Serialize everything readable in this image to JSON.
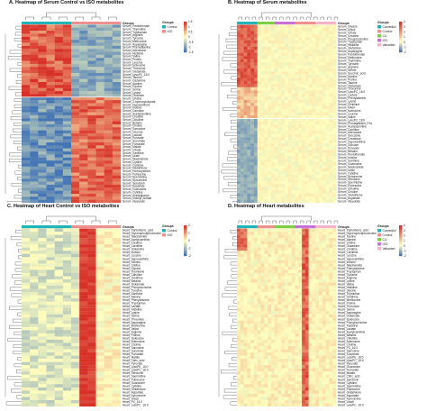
{
  "panels": [
    {
      "id": "A",
      "title": "A. Heatmap of Serum Control vs ISO metabolites",
      "group_colors": [
        "#1fb5b8",
        "#1fb5b8",
        "#1fb5b8",
        "#1fb5b8",
        "#1fb5b8",
        "#1fb5b8",
        "#f08f8f",
        "#f08f8f",
        "#f08f8f",
        "#f08f8f",
        "#f08f8f",
        "#f08f8f"
      ],
      "legend_title": "Groups",
      "legend": [
        {
          "label": "Control",
          "color": "#1fb5b8"
        },
        {
          "label": "ISO",
          "color": "#f08f8f"
        }
      ],
      "scale_ticks": [
        "1.5",
        "1",
        "0.5",
        "0",
        "-0.5",
        "-1",
        "-1.5"
      ],
      "split_row": 24,
      "rows": [
        "Groups",
        "Serum_Pantothenate",
        "Serum_Thymidine",
        "Serum_Tryptophan",
        "Serum_Arginine",
        "Serum_Tyrosine",
        "Serum_Methionine",
        "Serum_Asparagine",
        "Serum_Phenylalanine",
        "Serum_Adenosine",
        "Serum_Histidine",
        "Serum_Valine",
        "Serum_Proline",
        "Serum_Leucine",
        "Serum_Isoleucine",
        "Serum_Threonine",
        "Serum_Glutamate",
        "Serum_LysoPC_16:0",
        "Serum_Taurine",
        "Serum_Glutamine",
        "Serum_Alanine",
        "Serum_Glycine",
        "Serum_Serine",
        "Serum_Lysine",
        "Serum_Ornithine",
        "Serum_Uridine",
        "Serum_3-hydroxybutyrate",
        "Serum_Hypoxanthine",
        "Serum_Inosine",
        "Serum_Carnitine",
        "Serum_Acetylcarnitine",
        "Serum_Creatine",
        "Serum_Citrulline",
        "Serum_Betaine",
        "Serum_Choline",
        "Serum_Sarcosine",
        "Serum_Glucose",
        "Serum_Lactate",
        "Serum_Pyruvate",
        "Serum_Succinate",
        "Serum_Fumarate",
        "Serum_Malate",
        "Serum_Citrate",
        "Serum_Xanthine",
        "Serum_Urate",
        "Serum_Niacinamide",
        "Serum_Cystine",
        "Serum_Cysteine",
        "Serum_Glutathione",
        "Serum_Homocysteine",
        "Serum_Putrescine",
        "Serum_Spermidine",
        "Serum_Kynurenine",
        "Serum_Serotonin",
        "Serum_Aspartate",
        "Serum_Guanosine",
        "Serum_Cytidine",
        "Serum_Acetylglycine",
        "Serum_Indoxyl_sulfate",
        "Serum_Hippurate"
      ],
      "vmin": -1.5,
      "vmax": 1.5,
      "matrix_seed": 11
    },
    {
      "id": "B",
      "title": "B. Heatmap of Serum metabolites",
      "group_colors": [
        "#1fb5b8",
        "#1fb5b8",
        "#1fb5b8",
        "#1fb5b8",
        "#1fb5b8",
        "#1fb5b8",
        "#7ccf45",
        "#7ccf45",
        "#7ccf45",
        "#7ccf45",
        "#7ccf45",
        "#c66fd8",
        "#c66fd8",
        "#c66fd8",
        "#c66fd8",
        "#c66fd8",
        "#c66fd8",
        "#f08f8f",
        "#f08f8f",
        "#f08f8f",
        "#f08f8f",
        "#f08f8f",
        "#f08f8f",
        "#f6b3c8",
        "#f6b3c8",
        "#f6b3c8",
        "#f6b3c8",
        "#f6b3c8",
        "#f6b3c8"
      ],
      "legend_title": "Groups",
      "legend": [
        {
          "label": "Carvedilol",
          "color": "#1fb5b8"
        },
        {
          "label": "Control",
          "color": "#f08f8f"
        },
        {
          "label": "CU",
          "color": "#7ccf45"
        },
        {
          "label": "ISO",
          "color": "#c66fd8"
        },
        {
          "label": "Valsartan",
          "color": "#f6b3c8"
        }
      ],
      "scale_ticks": [
        "4",
        "3",
        "2",
        "1",
        "0",
        "-1",
        "-2"
      ],
      "split_row": 30,
      "rows": [
        "Groups",
        "Serum_Glycine",
        "Serum_Uracil",
        "Serum_Citrate",
        "Serum_Creatine",
        "Serum_Phosphocholine",
        "Serum_Tryptophan",
        "Serum_Histidine",
        "Serum_Glutamine",
        "Serum_Asparagine",
        "Serum_Pantothenate",
        "Serum_Methionine",
        "Serum_Thymidine",
        "Serum_Tyrosine",
        "Serum_Arginine",
        "Serum_Serine",
        "Serum_Succinic_acid",
        "Serum_Alanine",
        "Serum_Proline",
        "Serum_Taurine",
        "Serum_Glutamate",
        "Serum_Threonine",
        "Serum_LysoPC_16:0",
        "Serum_Lactate",
        "Serum_Phenylalanine",
        "Serum_Lysine",
        "Serum_Ornithine",
        "Serum_NAD+",
        "Serum_Isoleucine",
        "Serum_Leucine",
        "Serum_Valine",
        "Serum_LysoPC_18:0",
        "Serum_Prostaglandin_F2a",
        "Serum_Acetylcarnitine",
        "Serum_Carnitine",
        "Serum_Adenosine",
        "Serum_Sarcosine",
        "Serum_Creatinine",
        "Serum_Hypoxanthine",
        "Serum_Glucose",
        "Serum_Pyruvate",
        "Serum_Betaine",
        "Serum_Pentothenate",
        "Serum_Inosine",
        "Serum_Xanthine",
        "Serum_Guanosine",
        "Serum_Niacinamide",
        "Serum_Urate",
        "Serum_Cytidine",
        "Serum_Kynurenine",
        "Serum_Serotonin",
        "Serum_Spermidine",
        "Serum_Putrescine",
        "Serum_Citrulline",
        "Serum_Choline",
        "Serum_Glutathione",
        "Serum_Aspartate",
        "Serum_Hippurate"
      ],
      "vmin": -2,
      "vmax": 4,
      "matrix_seed": 23
    },
    {
      "id": "C",
      "title": "C. Heatmap of Heart Control vs ISO metabolites",
      "group_colors": [
        "#1fb5b8",
        "#1fb5b8",
        "#1fb5b8",
        "#1fb5b8",
        "#1fb5b8",
        "#1fb5b8",
        "#f08f8f",
        "#f08f8f",
        "#f08f8f",
        "#f08f8f",
        "#f08f8f",
        "#f08f8f"
      ],
      "legend_title": "Groups",
      "legend": [
        {
          "label": "Control",
          "color": "#1fb5b8"
        },
        {
          "label": "ISO",
          "color": "#f08f8f"
        }
      ],
      "scale_ticks": [
        "2",
        "1",
        "0",
        "-1",
        "-2"
      ],
      "split_row": 0,
      "rows": [
        "Groups",
        "Heart_Pantothenic_acid",
        "Heart_Glycerophosphocholine",
        "Heart_Niacinamide",
        "Heart_Acetylcarnitine",
        "Heart_Creatine",
        "Heart_Carnitine",
        "Heart_Glutamine",
        "Heart_Inosine",
        "Heart_Leucine",
        "Heart_Hypoxanthine",
        "Heart_Taurine",
        "Heart_Uridine",
        "Heart_Glycine",
        "Heart_Thymidine",
        "Heart_Citrulline",
        "Heart_Ornithine",
        "Heart_Betaine",
        "Heart_Glutamate",
        "Heart_Phosphocholine",
        "Heart_Tyrosine",
        "Heart_Xanthine",
        "Heart_Alanine",
        "Heart_Phenylalanine",
        "Heart_Tryptophan",
        "Heart_Lactate",
        "Heart_Histidine",
        "Heart_Lysine",
        "Heart_Serine",
        "Heart_Threonine",
        "Heart_Asparagine",
        "Heart_Methionine",
        "Heart_Valine",
        "Heart_Arginine",
        "Heart_Proline",
        "Heart_Isoleucine",
        "Heart_Adenosine",
        "Heart_Choline",
        "Heart_Sarcosine",
        "Heart_Succinate",
        "Heart_Fumarate",
        "Heart_Malate",
        "Heart_Citric_acid",
        "Heart_Pyruvate",
        "Heart_LysoPE_16:0",
        "Heart_LysoPC_18:0",
        "Heart_Serotonin",
        "Heart_Spermidine",
        "Heart_Putrescine",
        "Heart_Guanosine",
        "Heart_Cytidine",
        "Heart_Glutathione",
        "Heart_Aspartate",
        "Heart_Kynurenine",
        "Heart_Uracil",
        "Heart_PC_16:0",
        "Heart_LysoPC_16:0"
      ],
      "vmin": -2,
      "vmax": 2,
      "matrix_seed": 37
    },
    {
      "id": "D",
      "title": "D. Heatmap of Heart metabolites",
      "group_colors": [
        "#1fb5b8",
        "#1fb5b8",
        "#1fb5b8",
        "#1fb5b8",
        "#1fb5b8",
        "#1fb5b8",
        "#f08f8f",
        "#f08f8f",
        "#f08f8f",
        "#f08f8f",
        "#f08f8f",
        "#7ccf45",
        "#7ccf45",
        "#7ccf45",
        "#7ccf45",
        "#7ccf45",
        "#7ccf45",
        "#c66fd8",
        "#c66fd8",
        "#c66fd8",
        "#c66fd8",
        "#c66fd8",
        "#c66fd8",
        "#f6b3c8",
        "#f6b3c8",
        "#f6b3c8",
        "#f6b3c8",
        "#f6b3c8",
        "#f6b3c8"
      ],
      "legend_title": "Groups",
      "legend": [
        {
          "label": "Carvedilol",
          "color": "#1fb5b8"
        },
        {
          "label": "Control",
          "color": "#f08f8f"
        },
        {
          "label": "CU",
          "color": "#7ccf45"
        },
        {
          "label": "ISO",
          "color": "#c66fd8"
        },
        {
          "label": "Valsartan",
          "color": "#f6b3c8"
        }
      ],
      "scale_ticks": [
        "4",
        "3",
        "2",
        "1",
        "0",
        "-1",
        "-2"
      ],
      "split_row": 0,
      "rows": [
        "Groups",
        "Heart_Pantothenic_acid",
        "Heart_Glycerophosphocholine",
        "Heart_Taurine",
        "Heart_Alanine",
        "Heart_Uridine",
        "Heart_Glutamine",
        "Heart_Creatine",
        "Heart_Carnitine",
        "Heart_Leucine",
        "Heart_Hypoxanthine",
        "Heart_Inosine",
        "Heart_Niacinamide",
        "Heart_Phenylalanine",
        "Heart_Tryptophan",
        "Heart_Tyrosine",
        "Heart_Arginine",
        "Heart_Lysine",
        "Heart_Valine",
        "Heart_Histidine",
        "Heart_Glycine",
        "Heart_Thymidine",
        "Heart_Ornithine",
        "Heart_Methionine",
        "Heart_Proline",
        "Heart_Threonine",
        "Heart_Serine",
        "Heart_Asparagine",
        "Heart_Glutamate",
        "Heart_Isoleucine",
        "Heart_Phosphocholine",
        "Heart_Xanthine",
        "Heart_Lactate",
        "Heart_Acetylcarnitine",
        "Heart_Betaine",
        "Heart_Citrulline",
        "Heart_Adenosine",
        "Heart_Choline",
        "Heart_PC_16:0",
        "Heart_Sarcosine",
        "Heart_Succinate",
        "Heart_LysoPE_16:0",
        "Heart_LysoPC_18:0",
        "Heart_Pyruvate",
        "Heart_Guanosine",
        "Heart_Fumarate",
        "Heart_Malate",
        "Heart_Citric_acid",
        "Heart_Serotonin",
        "Heart_Cytidine",
        "Heart_Spermidine",
        "Heart_Putrescine",
        "Heart_Glutathione",
        "Heart_Aspartate",
        "Heart_Kynurenine",
        "Heart_Uracil",
        "Heart_LysoPC_16:0"
      ],
      "vmin": -2,
      "vmax": 4,
      "matrix_seed": 53
    }
  ],
  "chart_data": [
    {
      "type": "heatmap",
      "title": "A. Heatmap of Serum Control vs ISO metabolites",
      "legend": [
        "Control",
        "ISO"
      ],
      "scale_range": [
        -1.5,
        1.5
      ]
    },
    {
      "type": "heatmap",
      "title": "B. Heatmap of Serum metabolites",
      "legend": [
        "Carvedilol",
        "Control",
        "CU",
        "ISO",
        "Valsartan"
      ],
      "scale_range": [
        -2,
        4
      ]
    },
    {
      "type": "heatmap",
      "title": "C. Heatmap of Heart Control vs ISO metabolites",
      "legend": [
        "Control",
        "ISO"
      ],
      "scale_range": [
        -2,
        2
      ]
    },
    {
      "type": "heatmap",
      "title": "D. Heatmap of Heart metabolites",
      "legend": [
        "Carvedilol",
        "Control",
        "CU",
        "ISO",
        "Valsartan"
      ],
      "scale_range": [
        -2,
        4
      ]
    }
  ]
}
